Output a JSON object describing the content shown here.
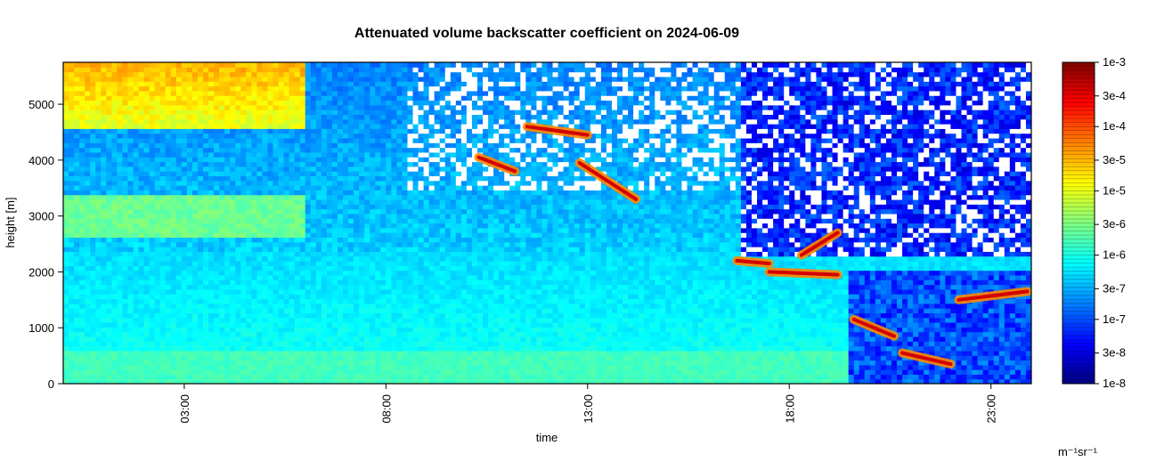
{
  "chart_data": {
    "type": "heatmap",
    "title": "Attenuated volume backscatter coefficient on 2024-06-09",
    "xlabel": "time",
    "ylabel": "height [m]",
    "x_range_hours": [
      0,
      24
    ],
    "x_ticks": [
      {
        "hour": 3,
        "label": "03:00"
      },
      {
        "hour": 8,
        "label": "08:00"
      },
      {
        "hour": 13,
        "label": "13:00"
      },
      {
        "hour": 18,
        "label": "18:00"
      },
      {
        "hour": 23,
        "label": "23:00"
      }
    ],
    "ylim": [
      0,
      5750
    ],
    "y_ticks": [
      0,
      1000,
      2000,
      3000,
      4000,
      5000
    ],
    "colorbar": {
      "scale": "log",
      "range": [
        1e-08,
        0.001
      ],
      "unit": "m⁻¹sr⁻¹",
      "ticks": [
        {
          "value": 0.001,
          "label": "1e-3"
        },
        {
          "value": 0.0003,
          "label": "3e-4"
        },
        {
          "value": 0.0001,
          "label": "1e-4"
        },
        {
          "value": 3e-05,
          "label": "3e-5"
        },
        {
          "value": 1e-05,
          "label": "1e-5"
        },
        {
          "value": 3e-06,
          "label": "3e-6"
        },
        {
          "value": 1e-06,
          "label": "1e-6"
        },
        {
          "value": 3e-07,
          "label": "3e-7"
        },
        {
          "value": 1e-07,
          "label": "1e-7"
        },
        {
          "value": 3e-08,
          "label": "3e-8"
        },
        {
          "value": 1e-08,
          "label": "1e-8"
        }
      ],
      "colormap": [
        "#00007f",
        "#0000ff",
        "#007fff",
        "#00ffff",
        "#7fff7f",
        "#ffff00",
        "#ff7f00",
        "#ff0000",
        "#7f0000"
      ]
    },
    "cloud_layers": [
      {
        "start_hour": 10.3,
        "end_hour": 11.2,
        "height_start": 4050,
        "height_end": 3800
      },
      {
        "start_hour": 11.5,
        "end_hour": 13.0,
        "height_start": 4600,
        "height_end": 4450
      },
      {
        "start_hour": 12.8,
        "end_hour": 14.2,
        "height_start": 3950,
        "height_end": 3300
      },
      {
        "start_hour": 16.7,
        "end_hour": 17.5,
        "height_start": 2200,
        "height_end": 2150
      },
      {
        "start_hour": 17.5,
        "end_hour": 19.2,
        "height_start": 2000,
        "height_end": 1950
      },
      {
        "start_hour": 18.3,
        "end_hour": 19.2,
        "height_start": 2300,
        "height_end": 2700
      },
      {
        "start_hour": 19.6,
        "end_hour": 20.6,
        "height_start": 1150,
        "height_end": 850
      },
      {
        "start_hour": 20.8,
        "end_hour": 22.0,
        "height_start": 550,
        "height_end": 350
      },
      {
        "start_hour": 22.2,
        "end_hour": 23.9,
        "height_start": 1500,
        "height_end": 1650
      }
    ]
  }
}
